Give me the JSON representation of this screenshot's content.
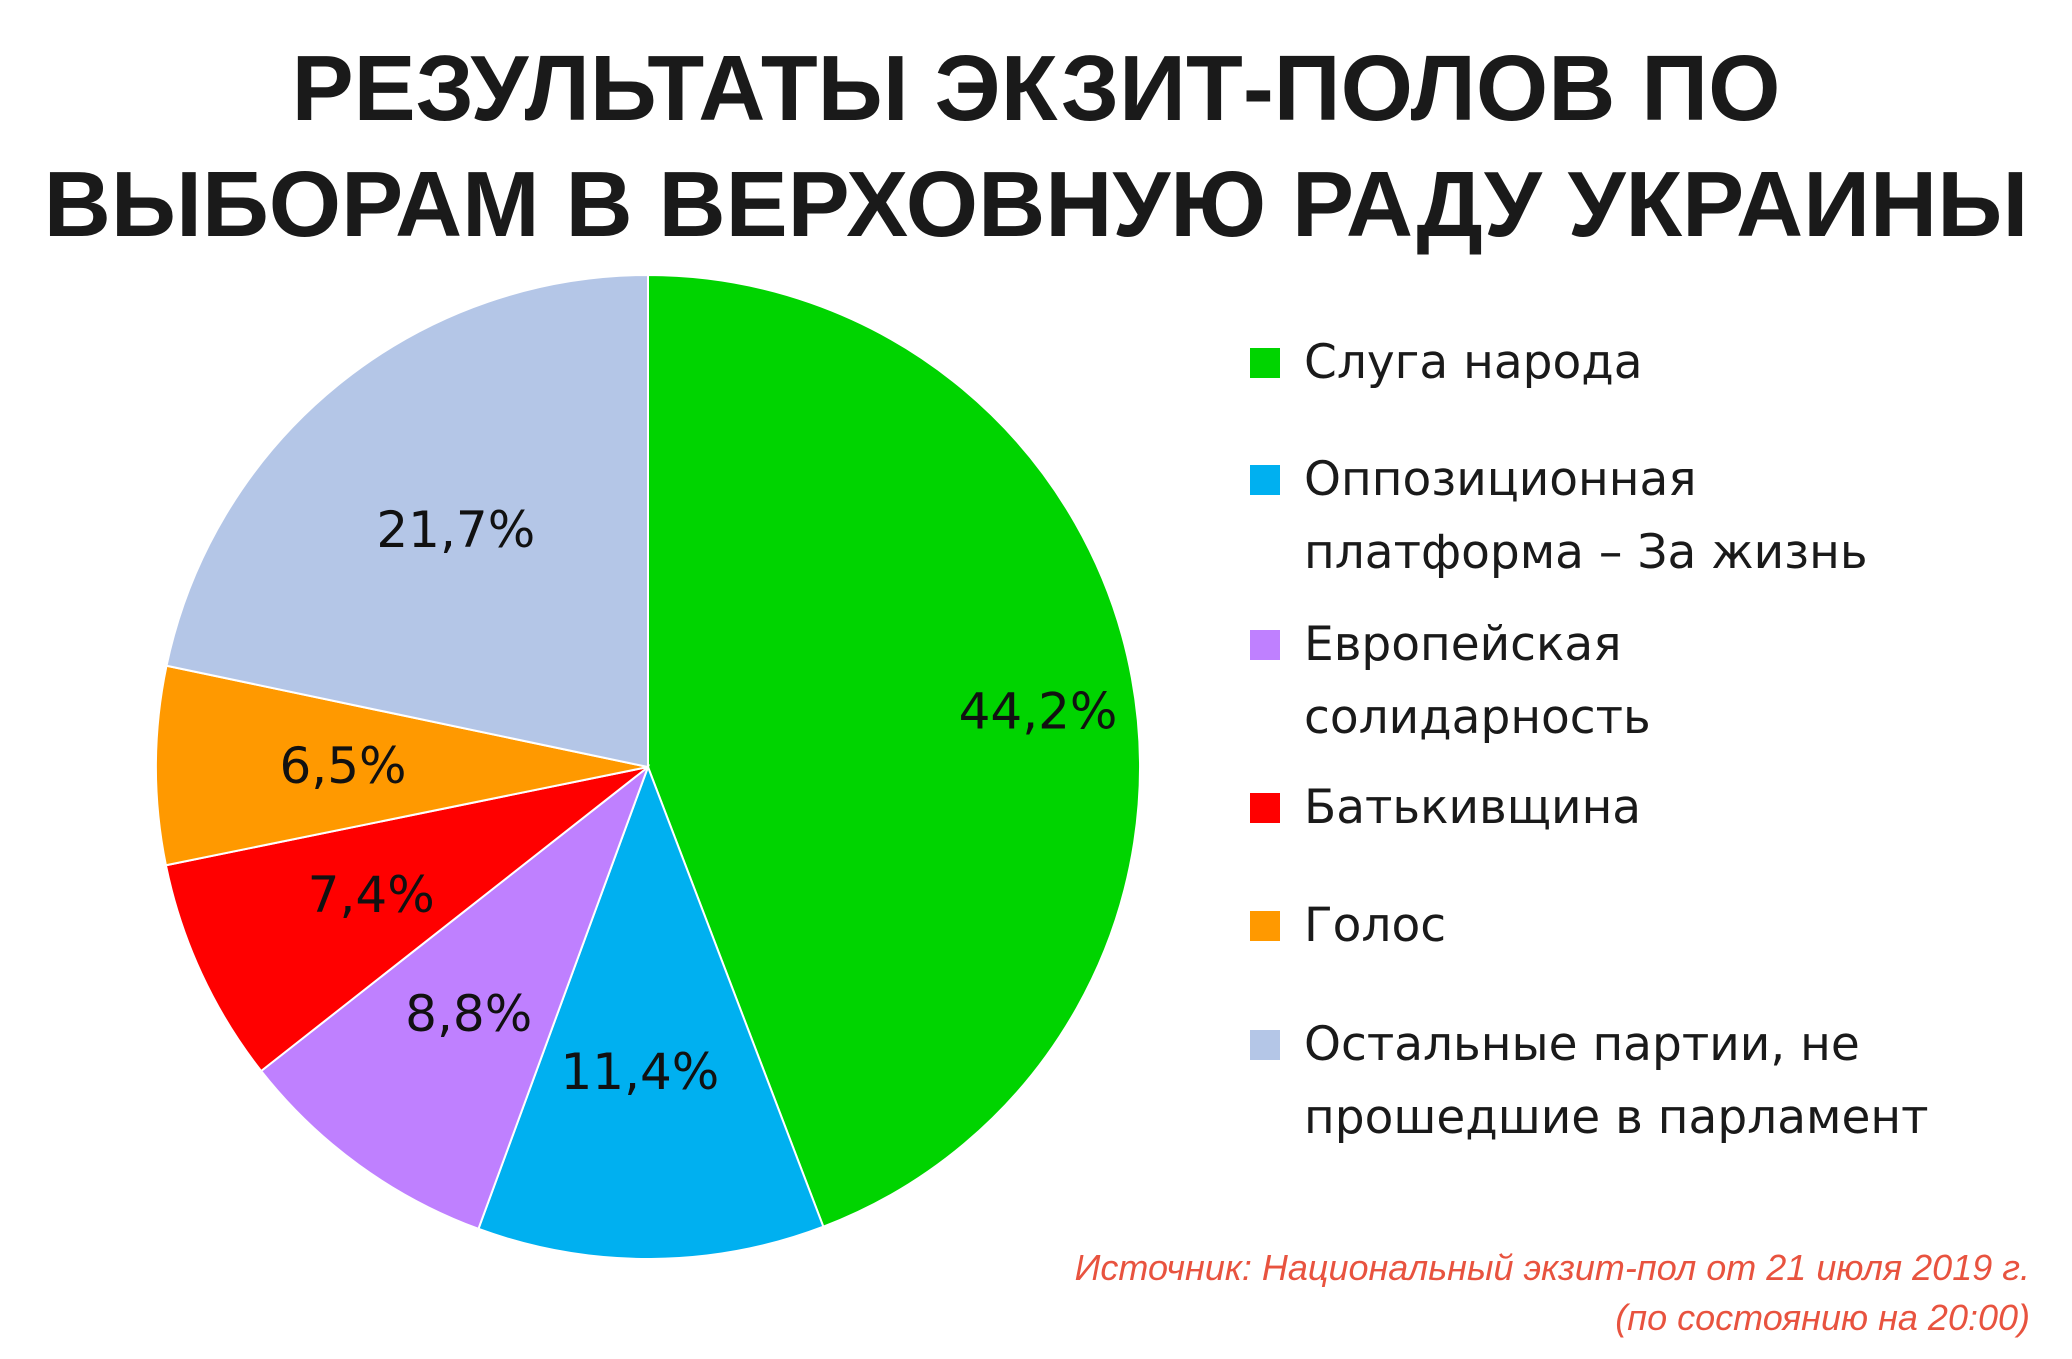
{
  "title": {
    "line1": "РЕЗУЛЬТАТЫ ЭКЗИТ-ПОЛОВ ПО",
    "line2": "ВЫБОРАМ В ВЕРХОВНУЮ РАДУ УКРАИНЫ"
  },
  "chart_data": {
    "type": "pie",
    "title": "РЕЗУЛЬТАТЫ ЭКЗИТ-ПОЛОВ ПО ВЫБОРАМ В ВЕРХОВНУЮ РАДУ УКРАИНЫ",
    "legend_position": "right",
    "slices": [
      {
        "name": "Слуга народа",
        "value": 44.2,
        "label": "44,2%",
        "color": "#00d400"
      },
      {
        "name": "Оппозиционная платформа – За жизнь",
        "value": 11.4,
        "label": "11,4%",
        "color": "#00b0f0"
      },
      {
        "name": "Европейская солидарность",
        "value": 8.8,
        "label": "8,8%",
        "color": "#bf80ff"
      },
      {
        "name": "Батькивщина",
        "value": 7.4,
        "label": "7,4%",
        "color": "#ff0000"
      },
      {
        "name": "Голос",
        "value": 6.5,
        "label": "6,5%",
        "color": "#ff9900"
      },
      {
        "name": "Остальные партии, не прошедшие в парламент",
        "value": 21.7,
        "label": "21,7%",
        "color": "#b4c6e7"
      }
    ],
    "legend": [
      {
        "lines": [
          "Слуга народа"
        ],
        "color": "#00d400"
      },
      {
        "lines": [
          "Оппозиционная",
          "платформа – За жизнь"
        ],
        "color": "#00b0f0"
      },
      {
        "lines": [
          "Европейская",
          "солидарность"
        ],
        "color": "#bf80ff"
      },
      {
        "lines": [
          "Батькивщина"
        ],
        "color": "#ff0000"
      },
      {
        "lines": [
          "Голос"
        ],
        "color": "#ff9900"
      },
      {
        "lines": [
          "Остальные партии, не",
          "прошедшие в парламент"
        ],
        "color": "#b4c6e7"
      }
    ]
  },
  "source": {
    "line1": "Источник: Национальный экзит-пол от 21 июля 2019 г.",
    "line2": "(по состоянию на 20:00)"
  }
}
